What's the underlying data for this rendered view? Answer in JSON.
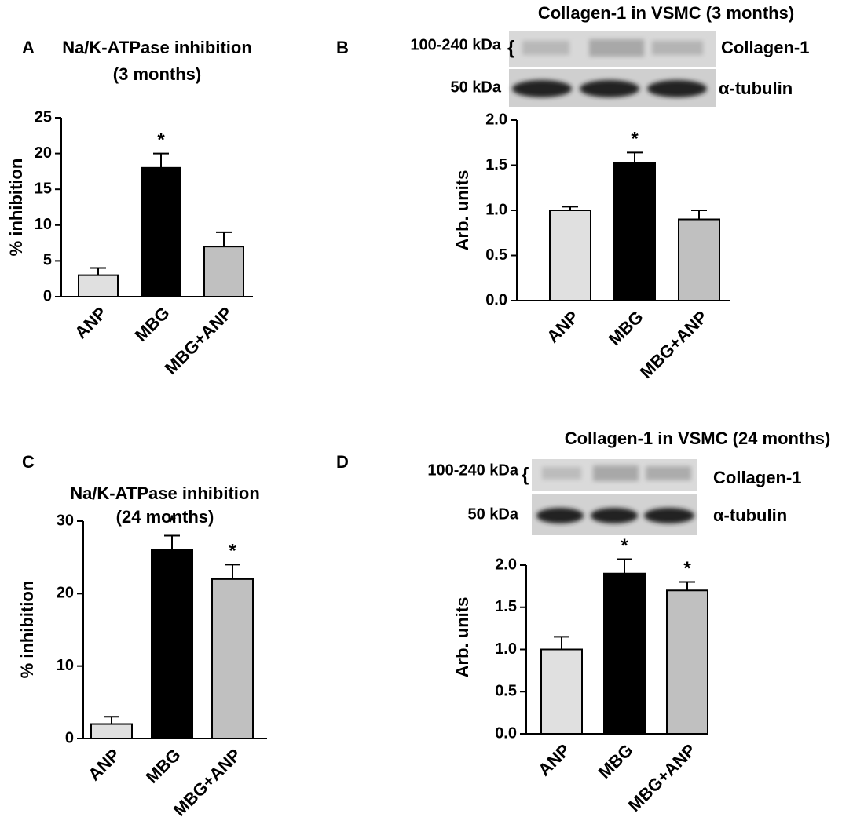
{
  "chart_data": [
    {
      "type": "bar",
      "panel": "A",
      "title": "Na/K-ATPase inhibition",
      "subtitle": "(3 months)",
      "ylabel": "% inhibition",
      "categories": [
        "ANP",
        "MBG",
        "MBG+ANP"
      ],
      "values": [
        3,
        18,
        7
      ],
      "errors": [
        1,
        2,
        2
      ],
      "significance": [
        null,
        "*",
        null
      ],
      "colors": [
        "#e0e0e0",
        "#000000",
        "#c0c0c0"
      ],
      "ylim": [
        0,
        25
      ],
      "yticks": [
        0,
        5,
        10,
        15,
        20,
        25
      ]
    },
    {
      "type": "bar",
      "panel": "B",
      "title": "Collagen-1 in VSMC (3 months)",
      "ylabel": "Arb. units",
      "blot_labels": {
        "upper_size": "100-240 kDa",
        "upper_protein": "Collagen-1",
        "lower_size": "50 kDa",
        "lower_protein": "α-tubulin"
      },
      "categories": [
        "ANP",
        "MBG",
        "MBG+ANP"
      ],
      "values": [
        1.0,
        1.53,
        0.9
      ],
      "errors": [
        0.04,
        0.11,
        0.1
      ],
      "significance": [
        null,
        "*",
        null
      ],
      "colors": [
        "#e0e0e0",
        "#000000",
        "#c0c0c0"
      ],
      "ylim": [
        0,
        2.0
      ],
      "yticks": [
        {
          "value": 0,
          "label": "0.0"
        },
        {
          "value": 0.5,
          "label": "0.5"
        },
        {
          "value": 1,
          "label": "1.0"
        },
        {
          "value": 1.5,
          "label": "1.5"
        },
        {
          "value": 2,
          "label": "2.0"
        }
      ]
    },
    {
      "type": "bar",
      "panel": "C",
      "title": "Na/K-ATPase inhibition",
      "subtitle": "(24 months)",
      "ylabel": "% inhibition",
      "categories": [
        "ANP",
        "MBG",
        "MBG+ANP"
      ],
      "values": [
        2,
        26,
        22
      ],
      "errors": [
        1,
        2,
        2
      ],
      "significance": [
        null,
        "*",
        "*"
      ],
      "colors": [
        "#e0e0e0",
        "#000000",
        "#c0c0c0"
      ],
      "ylim": [
        0,
        30
      ],
      "yticks": [
        0,
        10,
        20,
        30
      ]
    },
    {
      "type": "bar",
      "panel": "D",
      "title": "Collagen-1 in VSMC (24 months)",
      "ylabel": "Arb. units",
      "blot_labels": {
        "upper_size": "100-240 kDa",
        "upper_protein": "Collagen-1",
        "lower_size": "50 kDa",
        "lower_protein": "α-tubulin"
      },
      "categories": [
        "ANP",
        "MBG",
        "MBG+ANP"
      ],
      "values": [
        1.0,
        1.9,
        1.7
      ],
      "errors": [
        0.15,
        0.17,
        0.1
      ],
      "significance": [
        null,
        "*",
        "*"
      ],
      "colors": [
        "#e0e0e0",
        "#000000",
        "#c0c0c0"
      ],
      "ylim": [
        0,
        2.0
      ],
      "yticks": [
        {
          "value": 0,
          "label": "0.0"
        },
        {
          "value": 0.5,
          "label": "0.5"
        },
        {
          "value": 1,
          "label": "1.0"
        },
        {
          "value": 1.5,
          "label": "1.5"
        },
        {
          "value": 2,
          "label": "2.0"
        }
      ]
    }
  ]
}
